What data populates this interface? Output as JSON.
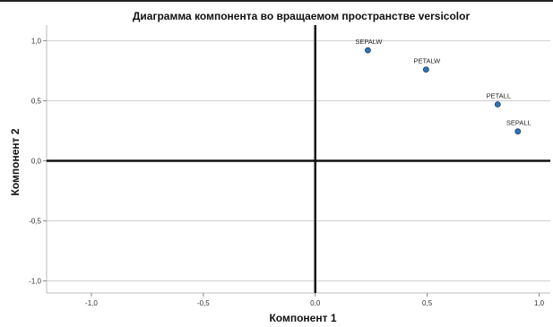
{
  "chart_data": {
    "type": "scatter",
    "title": "Диаграмма компонента во вращаемом пространстве versicolor",
    "xlabel": "Компонент 1",
    "ylabel": "Компонент 2",
    "xlim": [
      -1.2,
      1.05
    ],
    "ylim": [
      -1.1,
      1.13
    ],
    "xticks": [
      {
        "value": -1.0,
        "label": "-1,0"
      },
      {
        "value": -0.5,
        "label": "-0,5"
      },
      {
        "value": 0.0,
        "label": "0,0"
      },
      {
        "value": 0.5,
        "label": "0,5"
      },
      {
        "value": 1.0,
        "label": "1,0"
      }
    ],
    "yticks": [
      {
        "value": 1.0,
        "label": "1,0"
      },
      {
        "value": 0.5,
        "label": "0,5"
      },
      {
        "value": 0.0,
        "label": "0,0"
      },
      {
        "value": -0.5,
        "label": "-0,5"
      },
      {
        "value": -1.0,
        "label": "-1,0"
      }
    ],
    "grid": "horizontal",
    "points": [
      {
        "label": "SEPALW",
        "x": 0.235,
        "y": 0.92
      },
      {
        "label": "PETALW",
        "x": 0.495,
        "y": 0.76
      },
      {
        "label": "PETALL",
        "x": 0.815,
        "y": 0.47
      },
      {
        "label": "SEPALL",
        "x": 0.905,
        "y": 0.245
      }
    ],
    "colors": {
      "point": "#2e75b6",
      "point_edge": "#1a3d66",
      "grid": "#cfcfcf",
      "axis": "#111111"
    }
  }
}
